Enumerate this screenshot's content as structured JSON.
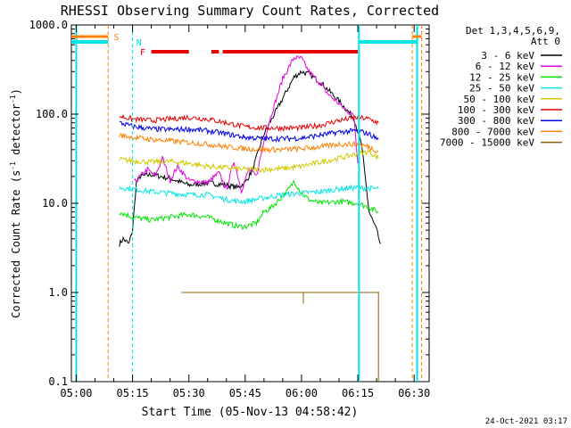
{
  "chart_data": {
    "type": "line",
    "title": "RHESSI Observing Summary Count Rates, Corrected",
    "xlabel": "Start Time (05-Nov-13 04:58:42)",
    "ylabel_main": "Corrected Count Rate (s",
    "ylabel_sup1": "-1",
    "ylabel_mid": " detector",
    "ylabel_sup2": "-1",
    "ylabel_end": ")",
    "x_axis": {
      "min_minutes_from_0500": -1.3,
      "max_minutes_from_0500": 94,
      "ticks": [
        {
          "v": 0,
          "label": "05:00"
        },
        {
          "v": 15,
          "label": "05:15"
        },
        {
          "v": 30,
          "label": "05:30"
        },
        {
          "v": 45,
          "label": "05:45"
        },
        {
          "v": 60,
          "label": "06:00"
        },
        {
          "v": 75,
          "label": "06:15"
        },
        {
          "v": 90,
          "label": "06:30"
        }
      ]
    },
    "y_axis": {
      "scale": "log",
      "min": 0.1,
      "max": 1000,
      "ticks": [
        {
          "v": 0.1,
          "label": "0.1"
        },
        {
          "v": 1,
          "label": "1.0"
        },
        {
          "v": 10,
          "label": "10.0"
        },
        {
          "v": 100,
          "label": "100.0"
        },
        {
          "v": 1000,
          "label": "1000.0"
        }
      ]
    },
    "legend": {
      "placement": "right",
      "header1": "Det 1,3,4,5,6,9,",
      "header2": "Att 0",
      "entries": [
        {
          "label": "3 - 6 keV",
          "color": "#000000"
        },
        {
          "label": "6 - 12 keV",
          "color": "#e600e6"
        },
        {
          "label": "12 - 25 keV",
          "color": "#00e600"
        },
        {
          "label": "25 - 50 keV",
          "color": "#00e6e6"
        },
        {
          "label": "50 - 100 keV",
          "color": "#d2c800"
        },
        {
          "label": "100 - 300 keV",
          "color": "#e60000"
        },
        {
          "label": "300 - 800 keV",
          "color": "#0000e6"
        },
        {
          "label": "800 - 7000 keV",
          "color": "#ff8000"
        },
        {
          "label": "7000 - 15000 keV",
          "color": "#8c6400"
        }
      ]
    },
    "series": [
      {
        "name": "3 - 6 keV",
        "color": "#000000",
        "x": [
          11.5,
          12.5,
          14,
          15,
          16,
          17,
          20,
          25,
          30,
          35,
          40,
          43,
          45,
          47,
          50,
          55,
          58,
          60,
          62,
          65,
          70,
          74,
          76,
          78,
          80,
          81
        ],
        "y": [
          3.5,
          4,
          3.5,
          5,
          17,
          20,
          21,
          19,
          16,
          17,
          16,
          15,
          17,
          24,
          60,
          150,
          260,
          300,
          280,
          230,
          140,
          90,
          45,
          8,
          5,
          3.5
        ]
      },
      {
        "name": "6 - 12 keV",
        "color": "#e600e6",
        "x": [
          15.5,
          17,
          19,
          21,
          23,
          25,
          27,
          30,
          35,
          38,
          40,
          42,
          44,
          46,
          48,
          50,
          52,
          55,
          58,
          60,
          62,
          65,
          67,
          70,
          72,
          74,
          75
        ],
        "y": [
          17,
          20,
          24,
          20,
          32,
          18,
          26,
          18,
          17,
          22,
          14,
          30,
          14,
          24,
          20,
          50,
          100,
          250,
          430,
          420,
          300,
          220,
          170,
          130,
          110,
          95,
          28
        ]
      },
      {
        "name": "12 - 25 keV",
        "color": "#00e600",
        "x": [
          11.5,
          15,
          20,
          25,
          30,
          35,
          40,
          43,
          45,
          48,
          50,
          52,
          55,
          57,
          58,
          60,
          62,
          65,
          70,
          75,
          78,
          80.5
        ],
        "y": [
          8,
          7,
          6.5,
          7,
          7.5,
          7,
          6,
          5.5,
          5.5,
          6,
          8,
          9,
          12,
          15,
          18,
          13,
          11,
          10,
          10.5,
          10,
          9,
          8
        ]
      },
      {
        "name": "25 - 50 keV",
        "color": "#00e6e6",
        "x": [
          11.5,
          15,
          20,
          25,
          30,
          35,
          40,
          43,
          45,
          50,
          55,
          60,
          65,
          70,
          75,
          80.5
        ],
        "y": [
          15,
          14.5,
          13.5,
          13,
          12.5,
          12.5,
          11,
          10.5,
          10.5,
          11.5,
          12.5,
          13,
          13.5,
          14.5,
          15,
          14.5
        ]
      },
      {
        "name": "50 - 100 keV",
        "color": "#d2c800",
        "x": [
          11.5,
          15,
          20,
          25,
          30,
          35,
          40,
          45,
          50,
          55,
          60,
          65,
          70,
          75,
          78,
          80.5
        ],
        "y": [
          31,
          30,
          29,
          29.5,
          28,
          26,
          25,
          24,
          24,
          24.5,
          26,
          29,
          32,
          36,
          38,
          32
        ]
      },
      {
        "name": "100 - 300 keV",
        "color": "#e60000",
        "x": [
          11.5,
          15,
          20,
          25,
          30,
          35,
          40,
          45,
          50,
          55,
          60,
          65,
          70,
          75,
          78,
          80.5
        ],
        "y": [
          95,
          88,
          85,
          88,
          92,
          88,
          80,
          72,
          70,
          70,
          70,
          75,
          85,
          92,
          88,
          80
        ]
      },
      {
        "name": "300 - 800 keV",
        "color": "#0000e6",
        "x": [
          11.5,
          15,
          20,
          25,
          30,
          35,
          40,
          45,
          50,
          55,
          60,
          65,
          70,
          75,
          78,
          80.5
        ],
        "y": [
          80,
          73,
          68,
          67,
          68,
          65,
          60,
          55,
          53,
          53,
          54,
          58,
          63,
          65,
          60,
          52
        ]
      },
      {
        "name": "800 - 7000 keV",
        "color": "#ff8000",
        "x": [
          11.5,
          15,
          20,
          25,
          30,
          35,
          40,
          45,
          50,
          55,
          60,
          65,
          70,
          75,
          78,
          80.5
        ],
        "y": [
          58,
          55,
          52,
          50,
          48,
          46,
          43,
          41,
          40,
          40,
          41,
          43,
          46,
          46,
          43,
          38
        ]
      },
      {
        "name": "7000 - 15000 keV",
        "color": "#8c6400",
        "x": [
          28,
          40,
          50,
          58,
          60.5,
          60.5,
          60.5,
          61,
          70,
          80.5,
          80.5,
          80.5
        ],
        "y": [
          1,
          1,
          1,
          1,
          1,
          0.75,
          1,
          1,
          1,
          1,
          1.02,
          0.1
        ]
      }
    ],
    "annotations": {
      "cyan_vertical_lines_x": [
        0,
        75.3,
        90.8
      ],
      "cyan_dashed_line_x": [
        15
      ],
      "orange_dashed_lines_x": [
        8.5,
        89.5,
        92
      ],
      "saa_bar": {
        "color": "#00e6e6",
        "segments": [
          [
            -1.3,
            8.5
          ],
          [
            75.3,
            90.8
          ]
        ]
      },
      "orange_bars": {
        "color": "#ff8000",
        "segments": [
          [
            -1.3,
            8.5
          ],
          [
            89.5,
            92
          ]
        ]
      },
      "flare_bar": {
        "color": "#e60000",
        "segments": [
          [
            20,
            30
          ],
          [
            36,
            38
          ],
          [
            39,
            75
          ]
        ]
      },
      "labels": [
        {
          "text": "S",
          "color": "#ff8000",
          "x": 10
        },
        {
          "text": "N",
          "color": "#00e6e6",
          "x": 16
        },
        {
          "text": "F",
          "color": "#e60000",
          "x": 17
        }
      ]
    },
    "footer_date": "24-Oct-2021 03:17"
  }
}
